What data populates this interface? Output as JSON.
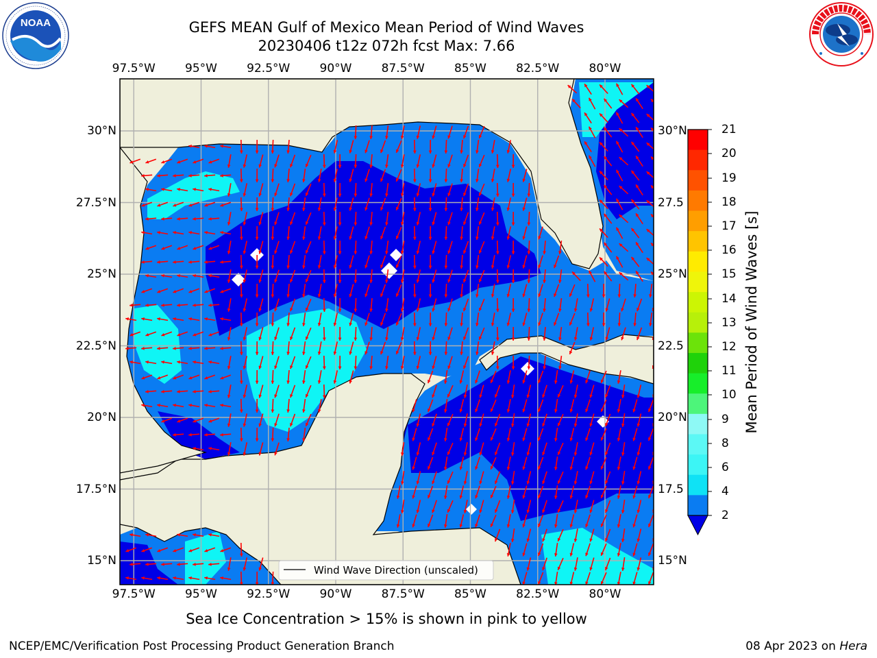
{
  "header": {
    "title_line1": "GEFS MEAN Gulf of Mexico Mean Period of Wind Waves",
    "title_line2": "20230406 t12z 072h fcst   Max: 7.66"
  },
  "logos": {
    "left": "noaa-logo",
    "right": "national-weather-service-logo"
  },
  "axes": {
    "lon_labels": [
      "97.5°W",
      "95°W",
      "92.5°W",
      "90°W",
      "87.5°W",
      "85°W",
      "82.5°W",
      "80°W"
    ],
    "lat_labels_left": [
      "30°N",
      "27.5°N",
      "25°N",
      "22.5°N",
      "20°N",
      "17.5°N",
      "15°N"
    ],
    "lat_labels_right": [
      "30°N",
      "27.5",
      "25°N",
      "22.5",
      "20°N",
      "17.5",
      "15°N"
    ]
  },
  "legend": {
    "label": "Wind Wave Direction (unscaled)"
  },
  "colorbar": {
    "label": "Mean Period of Wind Waves [s]",
    "ticks": [
      "2",
      "4",
      "6",
      "8",
      "9",
      "10",
      "11",
      "12",
      "13",
      "14",
      "15",
      "16",
      "17",
      "18",
      "19",
      "20",
      "21"
    ],
    "colors": [
      "#0a7cf2",
      "#0fe2f5",
      "#3cf5f5",
      "#5cf8f5",
      "#8ef9f5",
      "#4df57a",
      "#17ee2a",
      "#1fd20a",
      "#6ce30a",
      "#b7f00a",
      "#ccf504",
      "#eff50a",
      "#ffeb00",
      "#ffc400",
      "#ff9e00",
      "#ff7a00",
      "#ff5200",
      "#ff2800",
      "#ff0000"
    ],
    "extend_color": "#0000e6"
  },
  "map_colors": {
    "land": "#efefdb",
    "deep_blue": "#0000e6",
    "mid_blue": "#0a7cf2",
    "cyan": "#0ff5f5",
    "arrow": "#ff0000",
    "grid": "#b0b0b0"
  },
  "footer": {
    "ice_note": "Sea Ice Concentration > 15% is shown in pink to yellow",
    "credit": "NCEP/EMC/Verification Post Processing Product Generation Branch",
    "date": "08 Apr 2023 on",
    "host": "Hera"
  }
}
